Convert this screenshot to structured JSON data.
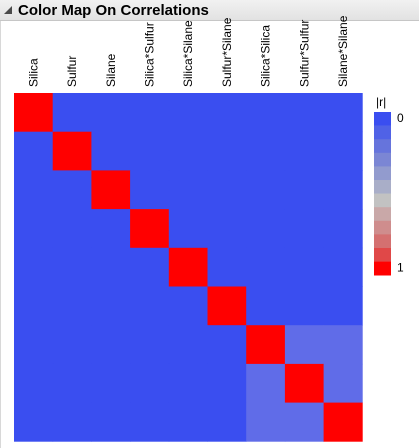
{
  "panel": {
    "title": "Color Map On Correlations"
  },
  "chart_data": {
    "type": "heatmap",
    "title": "Color Map On Correlations",
    "variables": [
      "Silica",
      "Sulfur",
      "Silane",
      "Silica*Sulfur",
      "Silica*Silane",
      "Sulfur*Silane",
      "Silica*Silica",
      "Sulfur*Sulfur",
      "Silane*Silane"
    ],
    "matrix": [
      [
        1,
        0,
        0,
        0,
        0,
        0,
        0,
        0,
        0
      ],
      [
        0,
        1,
        0,
        0,
        0,
        0,
        0,
        0,
        0
      ],
      [
        0,
        0,
        1,
        0,
        0,
        0,
        0,
        0,
        0
      ],
      [
        0,
        0,
        0,
        1,
        0,
        0,
        0,
        0,
        0
      ],
      [
        0,
        0,
        0,
        0,
        1,
        0,
        0,
        0,
        0
      ],
      [
        0,
        0,
        0,
        0,
        0,
        1,
        0,
        0,
        0
      ],
      [
        0,
        0,
        0,
        0,
        0,
        0,
        1,
        0.1,
        0.1
      ],
      [
        0,
        0,
        0,
        0,
        0,
        0,
        0.1,
        1,
        0.1
      ],
      [
        0,
        0,
        0,
        0,
        0,
        0,
        0.1,
        0.1,
        1
      ]
    ],
    "legend": {
      "title": "|r|",
      "min_label": "0",
      "max_label": "1",
      "colors": [
        "#3a4ef0",
        "#5062e6",
        "#6674dc",
        "#7b86d4",
        "#929bce",
        "#a9aec8",
        "#c2c2c2",
        "#c9a8a8",
        "#cf8d8d",
        "#d47070",
        "#e04848",
        "#ff0000"
      ]
    },
    "colors": {
      "low": "#3a4ef0",
      "high": "#ff0000"
    }
  }
}
